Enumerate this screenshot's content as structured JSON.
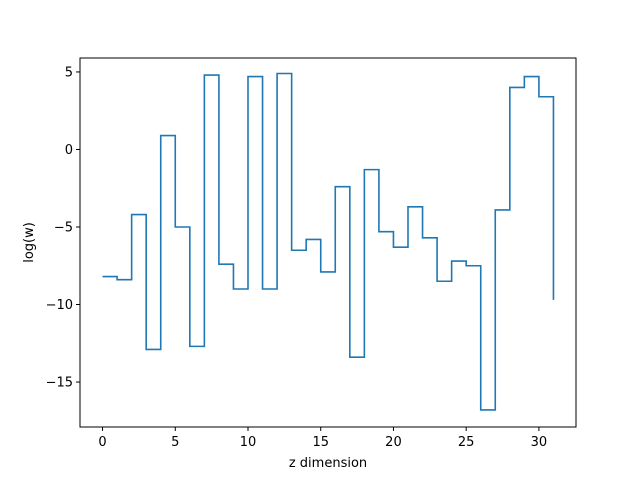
{
  "chart_data": {
    "type": "line",
    "drawstyle": "steps-post",
    "title": "",
    "xlabel": "z dimension",
    "ylabel": "log(w)",
    "xlim": [
      -1.55,
      32.55
    ],
    "ylim": [
      -17.9,
      5.9
    ],
    "xticks": [
      0,
      5,
      10,
      15,
      20,
      25,
      30
    ],
    "xtick_labels": [
      "0",
      "5",
      "10",
      "15",
      "20",
      "25",
      "30"
    ],
    "yticks": [
      5,
      0,
      -5,
      -10,
      -15
    ],
    "ytick_labels": [
      "5",
      "0",
      "−5",
      "−10",
      "−15"
    ],
    "grid": false,
    "legend": "none",
    "color": "#1f77b4",
    "x": [
      0,
      1,
      2,
      3,
      4,
      5,
      6,
      7,
      8,
      9,
      10,
      11,
      12,
      13,
      14,
      15,
      16,
      17,
      18,
      19,
      20,
      21,
      22,
      23,
      24,
      25,
      26,
      27,
      28,
      29,
      30,
      31
    ],
    "y": [
      -8.2,
      -8.4,
      -4.2,
      -12.9,
      0.9,
      -5.0,
      -12.7,
      4.8,
      -7.4,
      -9.0,
      4.7,
      -9.0,
      4.9,
      -6.5,
      -5.8,
      -7.9,
      -2.4,
      -13.4,
      -1.3,
      -5.3,
      -6.3,
      -3.7,
      -5.7,
      -8.5,
      -7.2,
      -7.5,
      -16.8,
      -3.9,
      4.0,
      4.7,
      3.4,
      -9.7
    ]
  }
}
